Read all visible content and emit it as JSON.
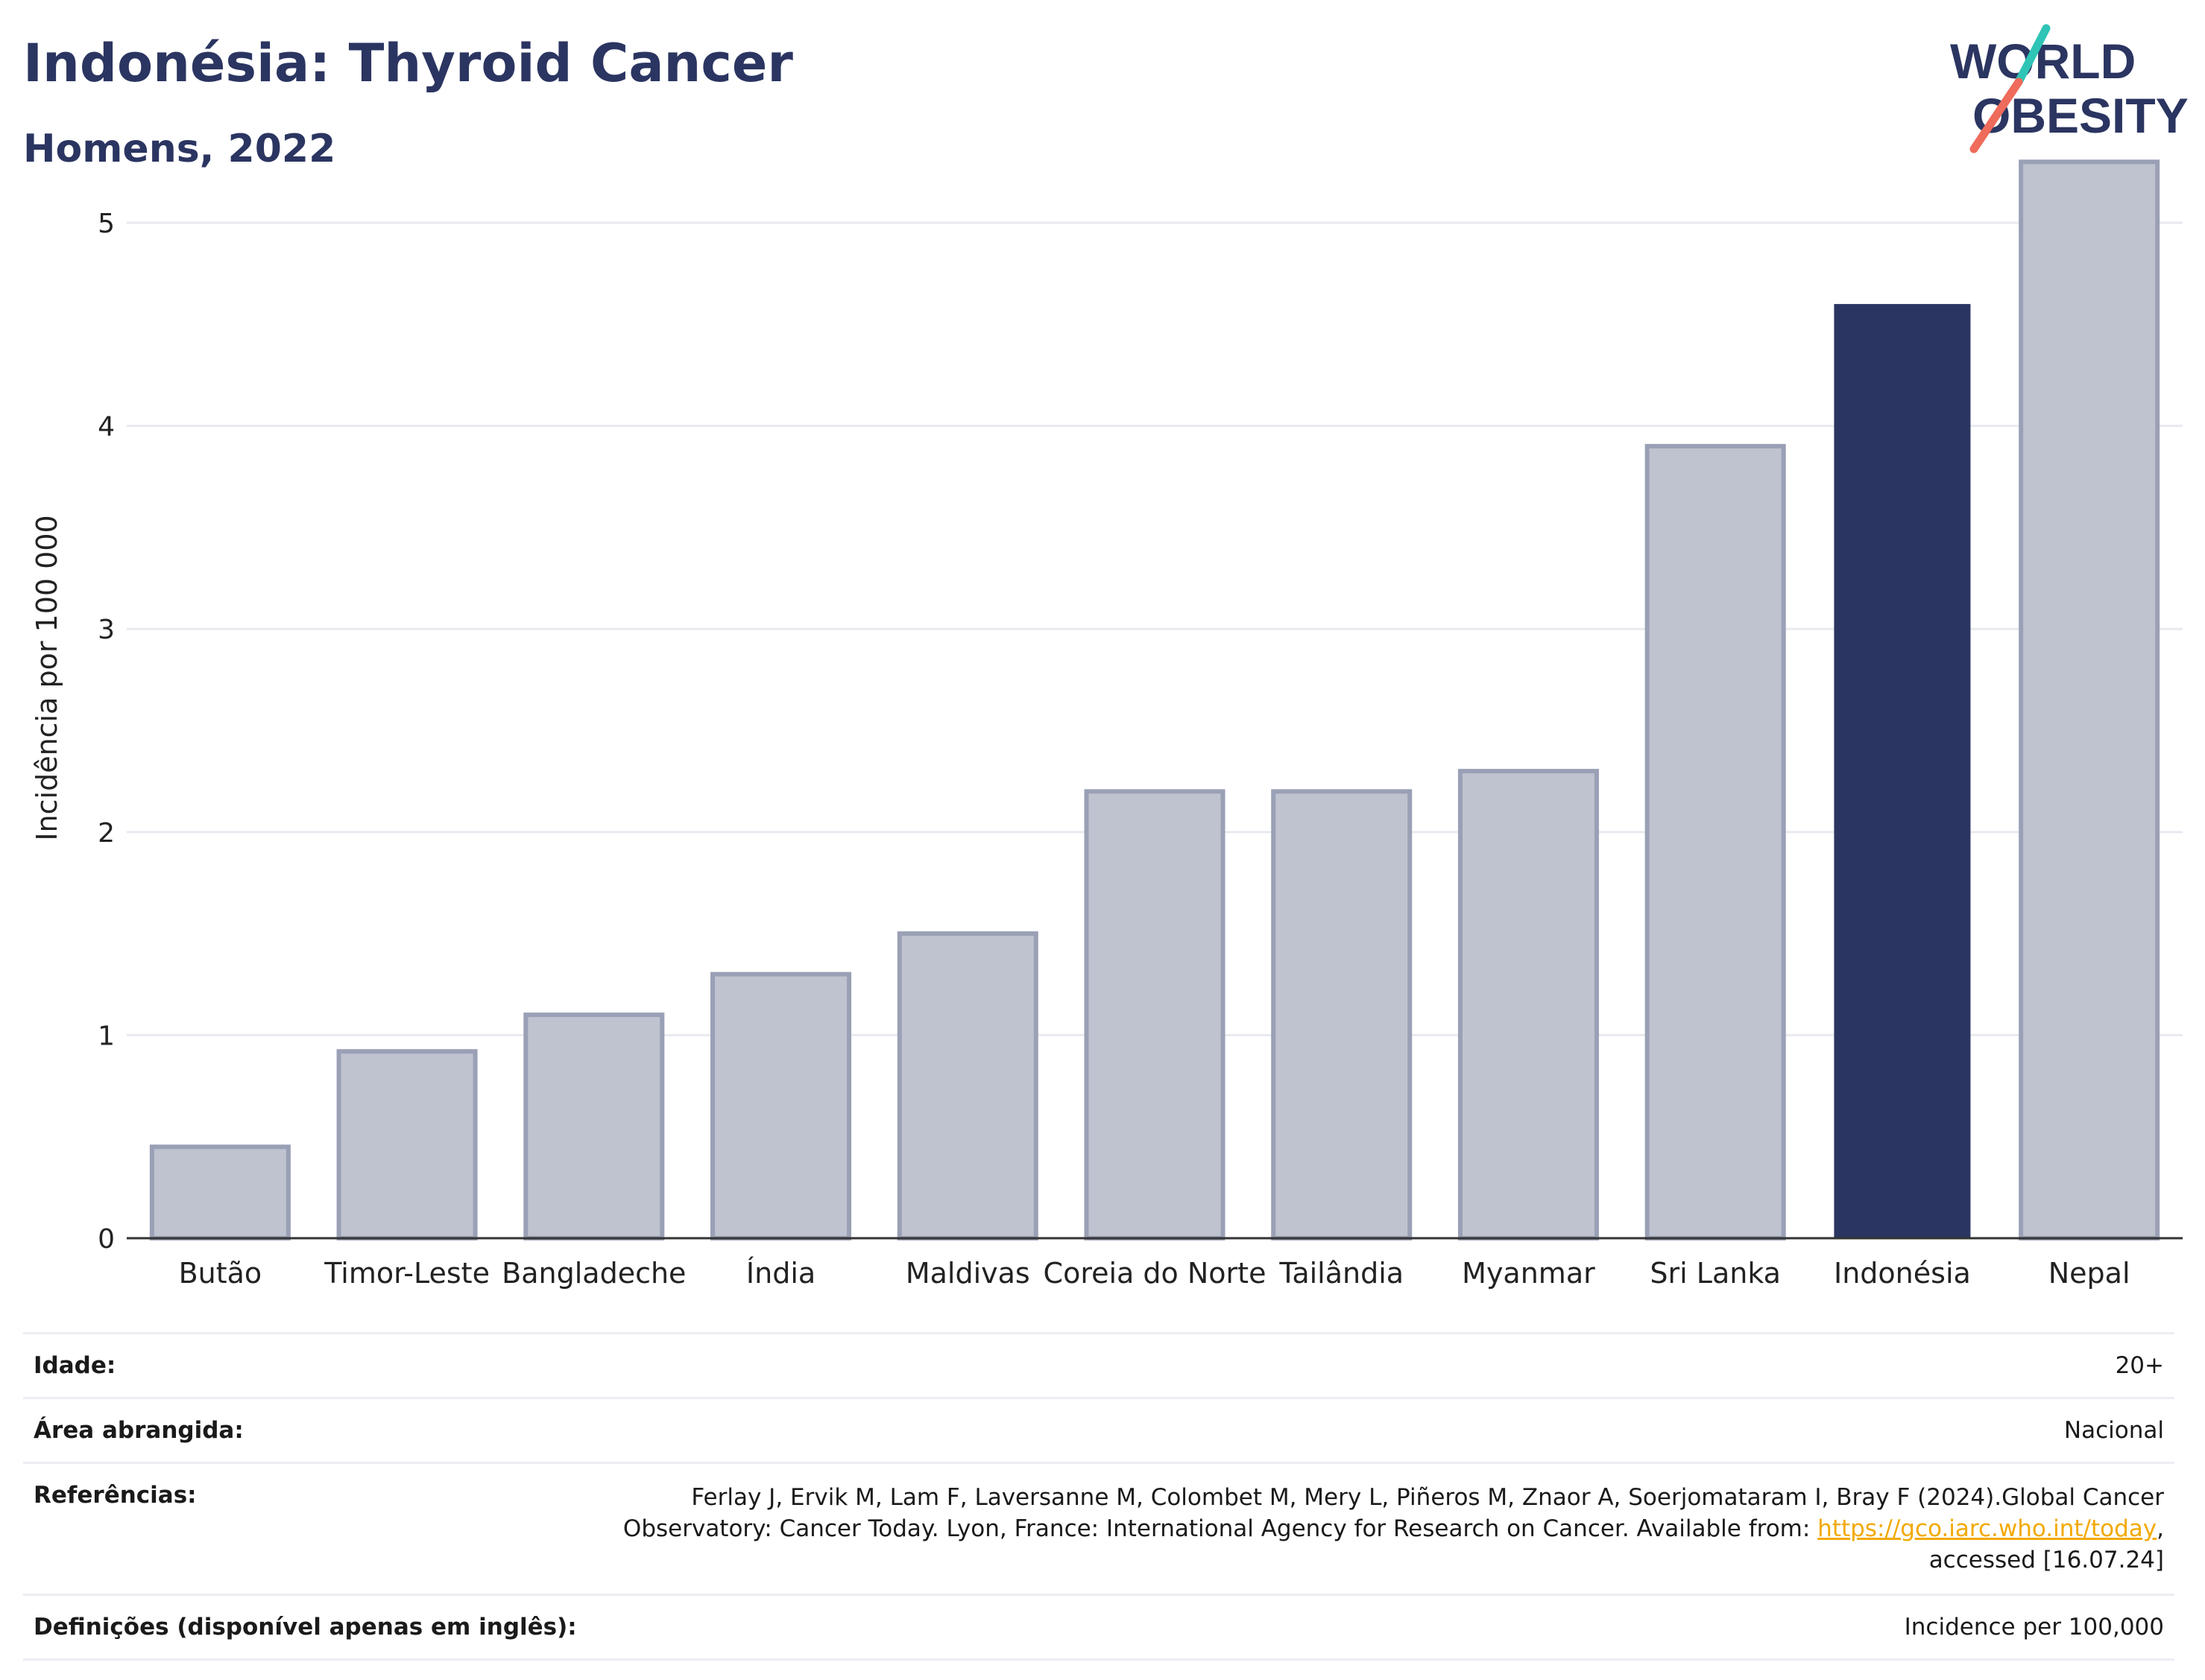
{
  "title": "Indonésia: Thyroid Cancer",
  "subtitle": "Homens, 2022",
  "logo": {
    "line1": "WORLD",
    "line2": "OBESITY"
  },
  "colors": {
    "title": "#2b3561",
    "highlight": "#2b3561",
    "bar": "#bfc3cf",
    "bar_border": "#9aa0b5",
    "accent_teal": "#2ec4b6",
    "accent_red": "#ef6b5b",
    "link": "#f2a900"
  },
  "chart_data": {
    "type": "bar",
    "title": "Indonésia: Thyroid Cancer",
    "subtitle": "Homens, 2022",
    "xlabel": "",
    "ylabel": "Incidência por 100 000",
    "ylim": [
      0,
      5.4
    ],
    "yticks": [
      0,
      1,
      2,
      3,
      4,
      5
    ],
    "grid": true,
    "categories": [
      "Butão",
      "Timor-Leste",
      "Bangladeche",
      "Índia",
      "Maldivas",
      "Coreia do Norte",
      "Tailândia",
      "Myanmar",
      "Sri Lanka",
      "Indonésia",
      "Nepal"
    ],
    "values": [
      0.45,
      0.92,
      1.1,
      1.3,
      1.5,
      2.2,
      2.2,
      2.3,
      3.9,
      4.6,
      5.3
    ],
    "highlight": "Indonésia"
  },
  "info": {
    "age_label": "Idade:",
    "age_value": "20+",
    "area_label": "Área abrangida:",
    "area_value": "Nacional",
    "ref_label": "Referências:",
    "ref_text_1": "Ferlay J, Ervik M, Lam F, Laversanne M, Colombet M, Mery L, Piñeros M, Znaor A, Soerjomataram I, Bray F (2024).Global Cancer Observatory: Cancer Today. Lyon, France: International Agency for Research on Cancer. Available from: ",
    "ref_link": "https://gco.iarc.who.int/today",
    "ref_text_2": ", accessed [16.07.24]",
    "def_label": "Definições (disponível apenas em inglês):",
    "def_value": "Incidence per 100,000"
  }
}
